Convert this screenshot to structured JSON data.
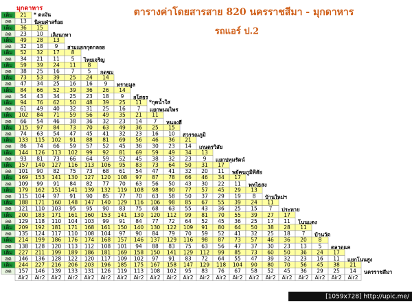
{
  "title": "ตารางค่าโดยสารสาย 820 นครราชสีมา - มุกดาหาร",
  "subtitle": "รถแอร์ ป.2",
  "origin": "มุกดาหาร",
  "labels": {
    "full": "เต็ม",
    "reduced": "ลด"
  },
  "rows": [
    {
      "station": "นิคมคำสร้อย",
      "note": "* ดงมัน",
      "full": [
        21
      ],
      "reduced": [
        13
      ]
    },
    {
      "station": "เลิงนกทา",
      "full": [
        36,
        15
      ],
      "reduced": [
        23,
        10
      ]
    },
    {
      "station": "สามแยกกุดกลอย",
      "full": [
        49,
        28,
        13
      ],
      "reduced": [
        32,
        18,
        9
      ]
    },
    {
      "station": "ไทยเจริญ",
      "full": [
        52,
        32,
        17,
        8
      ],
      "reduced": [
        34,
        21,
        11,
        5
      ]
    },
    {
      "station": "กุดชุม",
      "full": [
        59,
        39,
        24,
        11,
        8
      ],
      "reduced": [
        38,
        25,
        16,
        7,
        5
      ]
    },
    {
      "station": "ทรายมูล",
      "full": [
        73,
        53,
        39,
        25,
        24,
        14
      ],
      "reduced": [
        47,
        34,
        25,
        16,
        16,
        9
      ]
    },
    {
      "station": "ยโสธร",
      "full": [
        84,
        66,
        52,
        39,
        36,
        26,
        14
      ],
      "reduced": [
        54,
        43,
        34,
        25,
        23,
        18,
        9
      ]
    },
    {
      "station": "แยกพนมไพร",
      "note": "*กุดน้ำใส",
      "full": [
        94,
        76,
        62,
        50,
        48,
        39,
        25,
        11
      ],
      "reduced": [
        61,
        49,
        40,
        32,
        31,
        25,
        16,
        7
      ]
    },
    {
      "station": "หนองฮี",
      "full": [
        102,
        84,
        71,
        59,
        56,
        49,
        35,
        21,
        11
      ],
      "reduced": [
        66,
        54,
        46,
        38,
        36,
        32,
        23,
        14,
        7
      ]
    },
    {
      "station": "สุวรรณภูมิ",
      "full": [
        115,
        97,
        84,
        73,
        70,
        63,
        49,
        36,
        25,
        15
      ],
      "reduced": [
        74,
        63,
        54,
        47,
        45,
        41,
        32,
        23,
        16,
        10
      ]
    },
    {
      "station": "เกษตรวิสัย",
      "full": [
        133,
        115,
        102,
        91,
        88,
        81,
        69,
        56,
        46,
        36,
        21
      ],
      "reduced": [
        86,
        74,
        66,
        59,
        57,
        52,
        45,
        36,
        30,
        23,
        14
      ]
    },
    {
      "station": "แยกปทุมรัตน์",
      "full": [
        144,
        126,
        113,
        102,
        99,
        92,
        81,
        69,
        59,
        49,
        34,
        13
      ],
      "reduced": [
        93,
        81,
        73,
        66,
        64,
        59,
        52,
        45,
        38,
        32,
        23,
        9
      ]
    },
    {
      "station": "พยัคฆภูมิพิสัย",
      "full": [
        157,
        140,
        127,
        116,
        113,
        106,
        95,
        83,
        73,
        64,
        50,
        31,
        17
      ],
      "reduced": [
        101,
        90,
        82,
        75,
        73,
        68,
        61,
        54,
        47,
        41,
        32,
        20,
        11
      ]
    },
    {
      "station": "พุทไธสง",
      "full": [
        169,
        153,
        141,
        130,
        127,
        120,
        108,
        97,
        87,
        78,
        66,
        46,
        34,
        17
      ],
      "reduced": [
        109,
        99,
        91,
        84,
        82,
        77,
        70,
        63,
        56,
        50,
        43,
        30,
        22,
        11
      ]
    },
    {
      "station": "บ้านใหม่ฯ",
      "full": [
        179,
        162,
        151,
        141,
        139,
        132,
        119,
        108,
        98,
        90,
        77,
        57,
        45,
        29,
        13
      ],
      "reduced": [
        115,
        104,
        97,
        91,
        90,
        85,
        77,
        70,
        63,
        58,
        50,
        37,
        29,
        19,
        8
      ]
    },
    {
      "station": "ประทาย",
      "full": [
        188,
        171,
        160,
        148,
        147,
        140,
        129,
        116,
        106,
        98,
        85,
        67,
        55,
        39,
        24,
        11
      ],
      "reduced": [
        121,
        110,
        103,
        95,
        95,
        90,
        83,
        75,
        68,
        63,
        55,
        43,
        36,
        25,
        15,
        7
      ]
    },
    {
      "station": "โนนแดง",
      "full": [
        200,
        183,
        171,
        161,
        160,
        153,
        141,
        130,
        120,
        112,
        99,
        81,
        70,
        55,
        39,
        27,
        17
      ],
      "reduced": [
        129,
        118,
        110,
        104,
        103,
        99,
        91,
        84,
        77,
        72,
        64,
        52,
        45,
        36,
        25,
        17,
        11
      ]
    },
    {
      "station": "บ้านวัด",
      "full": [
        209,
        192,
        181,
        171,
        168,
        161,
        150,
        140,
        130,
        122,
        109,
        91,
        80,
        64,
        50,
        38,
        28,
        11
      ],
      "reduced": [
        135,
        124,
        117,
        110,
        108,
        104,
        97,
        90,
        84,
        79,
        70,
        59,
        52,
        41,
        32,
        25,
        18,
        7
      ]
    },
    {
      "station": "ตลาดแค",
      "full": [
        214,
        199,
        186,
        176,
        174,
        168,
        157,
        146,
        137,
        129,
        116,
        98,
        87,
        73,
        57,
        46,
        36,
        20,
        8
      ],
      "reduced": [
        138,
        128,
        120,
        113,
        112,
        108,
        101,
        94,
        88,
        83,
        75,
        63,
        56,
        47,
        37,
        30,
        23,
        13,
        5
      ]
    },
    {
      "station": "แยกโนนสูง",
      "full": [
        227,
        211,
        199,
        189,
        186,
        181,
        169,
        158,
        150,
        141,
        129,
        112,
        99,
        85,
        73,
        60,
        50,
        36,
        24,
        17
      ],
      "reduced": [
        146,
        136,
        128,
        122,
        120,
        117,
        109,
        102,
        97,
        91,
        83,
        72,
        64,
        55,
        47,
        39,
        32,
        23,
        16,
        11
      ]
    },
    {
      "station": "นครราชสีมา",
      "full": [
        244,
        227,
        216,
        206,
        203,
        196,
        185,
        175,
        167,
        158,
        147,
        129,
        118,
        104,
        90,
        80,
        70,
        56,
        45,
        38,
        21
      ],
      "reduced": [
        157,
        146,
        139,
        133,
        131,
        126,
        119,
        113,
        108,
        102,
        95,
        83,
        76,
        67,
        58,
        52,
        45,
        36,
        29,
        25,
        14
      ]
    }
  ],
  "bus_types": [
    "Air2",
    "Air2",
    "Air2",
    "Air2",
    "Air2",
    "Air2",
    "Air2",
    "Air2",
    "Air2",
    "Air2",
    "Air2",
    "Air2",
    "Air2",
    "Air2",
    "Air2",
    "Air2",
    "Air2",
    "Air2",
    "Air2",
    "Air2",
    "Air2"
  ],
  "footer": "[1059x728] http://upic.me/"
}
